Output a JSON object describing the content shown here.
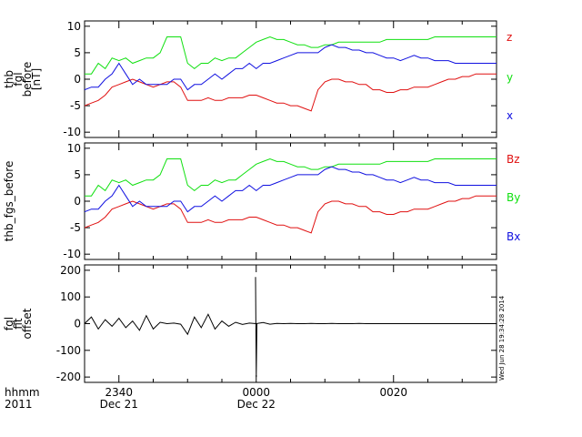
{
  "figure": {
    "x_time_labels": {
      "row1_label": "hhmm",
      "row2_label": "2011",
      "ticks": [
        {
          "t": -20,
          "row1": "2340",
          "row2": "Dec 21"
        },
        {
          "t": 0,
          "row1": "0000",
          "row2": "Dec 22"
        },
        {
          "t": 20,
          "row1": "0020",
          "row2": ""
        }
      ],
      "xlim_minutes": [
        -25,
        35
      ]
    },
    "timestamp": "Wed Jun 28 19:34:28 2014"
  },
  "chart_data": [
    {
      "type": "line",
      "ylabel_lines": [
        "thb",
        "fgl",
        "before",
        "[nT]"
      ],
      "ylim": [
        -11,
        11
      ],
      "yticks": [
        -10,
        -5,
        0,
        5,
        10
      ],
      "x_units": "minutes relative to Dec 22 0000",
      "series": [
        {
          "name": "z",
          "color": "#e01010",
          "x": [
            -25,
            -24,
            -23,
            -22,
            -21,
            -20,
            -19,
            -18,
            -17,
            -16,
            -15,
            -14,
            -13,
            -12,
            -11,
            -10,
            -9,
            -8,
            -7,
            -6,
            -5,
            -4,
            -3,
            -2,
            -1,
            0,
            1,
            2,
            3,
            4,
            5,
            6,
            7,
            8,
            9,
            10,
            11,
            12,
            13,
            14,
            15,
            16,
            17,
            18,
            19,
            20,
            21,
            22,
            23,
            24,
            25,
            26,
            27,
            28,
            29,
            30,
            31,
            32,
            33,
            34,
            35
          ],
          "y": [
            -5,
            -4.5,
            -4,
            -3,
            -1.5,
            -1,
            -0.5,
            0,
            -0.5,
            -1,
            -1.5,
            -1,
            -0.5,
            -0.5,
            -1.5,
            -4,
            -4,
            -4,
            -3.5,
            -4,
            -4,
            -3.5,
            -3.5,
            -3.5,
            -3,
            -3,
            -3.5,
            -4,
            -4.5,
            -4.5,
            -5,
            -5,
            -5.5,
            -6,
            -2,
            -0.5,
            0,
            0,
            -0.5,
            -0.5,
            -1,
            -1,
            -2,
            -2,
            -2.5,
            -2.5,
            -2,
            -2,
            -1.5,
            -1.5,
            -1.5,
            -1,
            -0.5,
            0,
            0,
            0.5,
            0.5,
            1,
            1,
            1,
            1
          ]
        },
        {
          "name": "y",
          "color": "#10e010",
          "x": [
            -25,
            -24,
            -23,
            -22,
            -21,
            -20,
            -19,
            -18,
            -17,
            -16,
            -15,
            -14,
            -13,
            -12,
            -11,
            -10,
            -9,
            -8,
            -7,
            -6,
            -5,
            -4,
            -3,
            -2,
            -1,
            0,
            1,
            2,
            3,
            4,
            5,
            6,
            7,
            8,
            9,
            10,
            11,
            12,
            13,
            14,
            15,
            16,
            17,
            18,
            19,
            20,
            21,
            22,
            23,
            24,
            25,
            26,
            27,
            28,
            29,
            30,
            31,
            32,
            33,
            34,
            35
          ],
          "y": [
            1,
            1,
            3,
            2,
            4,
            3.5,
            4,
            3,
            3.5,
            4,
            4,
            5,
            8,
            8,
            8,
            3,
            2,
            3,
            3,
            4,
            3.5,
            4,
            4,
            5,
            6,
            7,
            7.5,
            8,
            7.5,
            7.5,
            7,
            6.5,
            6.5,
            6,
            6,
            6.5,
            6.5,
            7,
            7,
            7,
            7,
            7,
            7,
            7,
            7.5,
            7.5,
            7.5,
            7.5,
            7.5,
            7.5,
            7.5,
            8,
            8,
            8,
            8,
            8,
            8,
            8,
            8,
            8,
            8
          ]
        },
        {
          "name": "x",
          "color": "#1010e0",
          "x": [
            -25,
            -24,
            -23,
            -22,
            -21,
            -20,
            -19,
            -18,
            -17,
            -16,
            -15,
            -14,
            -13,
            -12,
            -11,
            -10,
            -9,
            -8,
            -7,
            -6,
            -5,
            -4,
            -3,
            -2,
            -1,
            0,
            1,
            2,
            3,
            4,
            5,
            6,
            7,
            8,
            9,
            10,
            11,
            12,
            13,
            14,
            15,
            16,
            17,
            18,
            19,
            20,
            21,
            22,
            23,
            24,
            25,
            26,
            27,
            28,
            29,
            30,
            31,
            32,
            33,
            34,
            35
          ],
          "y": [
            -2,
            -1.5,
            -1.5,
            0,
            1,
            3,
            1,
            -1,
            0,
            -1,
            -1,
            -1,
            -1,
            0,
            0,
            -2,
            -1,
            -1,
            0,
            1,
            0,
            1,
            2,
            2,
            3,
            2,
            3,
            3,
            3.5,
            4,
            4.5,
            5,
            5,
            5,
            5,
            6,
            6.5,
            6,
            6,
            5.5,
            5.5,
            5,
            5,
            4.5,
            4,
            4,
            3.5,
            4,
            4.5,
            4,
            4,
            3.5,
            3.5,
            3.5,
            3,
            3,
            3,
            3,
            3,
            3,
            3
          ]
        }
      ]
    },
    {
      "type": "line",
      "ylabel_lines": [
        "thb_fgs_before"
      ],
      "ylim": [
        -11,
        11
      ],
      "yticks": [
        -10,
        -5,
        0,
        5,
        10
      ],
      "x_units": "minutes relative to Dec 22 0000",
      "series": [
        {
          "name": "Bz",
          "color": "#e01010",
          "x": [
            -25,
            -24,
            -23,
            -22,
            -21,
            -20,
            -19,
            -18,
            -17,
            -16,
            -15,
            -14,
            -13,
            -12,
            -11,
            -10,
            -9,
            -8,
            -7,
            -6,
            -5,
            -4,
            -3,
            -2,
            -1,
            0,
            1,
            2,
            3,
            4,
            5,
            6,
            7,
            8,
            9,
            10,
            11,
            12,
            13,
            14,
            15,
            16,
            17,
            18,
            19,
            20,
            21,
            22,
            23,
            24,
            25,
            26,
            27,
            28,
            29,
            30,
            31,
            32,
            33,
            34,
            35
          ],
          "y": [
            -5,
            -4.5,
            -4,
            -3,
            -1.5,
            -1,
            -0.5,
            0,
            -0.5,
            -1,
            -1.5,
            -1,
            -0.5,
            -0.5,
            -1.5,
            -4,
            -4,
            -4,
            -3.5,
            -4,
            -4,
            -3.5,
            -3.5,
            -3.5,
            -3,
            -3,
            -3.5,
            -4,
            -4.5,
            -4.5,
            -5,
            -5,
            -5.5,
            -6,
            -2,
            -0.5,
            0,
            0,
            -0.5,
            -0.5,
            -1,
            -1,
            -2,
            -2,
            -2.5,
            -2.5,
            -2,
            -2,
            -1.5,
            -1.5,
            -1.5,
            -1,
            -0.5,
            0,
            0,
            0.5,
            0.5,
            1,
            1,
            1,
            1
          ]
        },
        {
          "name": "By",
          "color": "#10e010",
          "x": [
            -25,
            -24,
            -23,
            -22,
            -21,
            -20,
            -19,
            -18,
            -17,
            -16,
            -15,
            -14,
            -13,
            -12,
            -11,
            -10,
            -9,
            -8,
            -7,
            -6,
            -5,
            -4,
            -3,
            -2,
            -1,
            0,
            1,
            2,
            3,
            4,
            5,
            6,
            7,
            8,
            9,
            10,
            11,
            12,
            13,
            14,
            15,
            16,
            17,
            18,
            19,
            20,
            21,
            22,
            23,
            24,
            25,
            26,
            27,
            28,
            29,
            30,
            31,
            32,
            33,
            34,
            35
          ],
          "y": [
            1,
            1,
            3,
            2,
            4,
            3.5,
            4,
            3,
            3.5,
            4,
            4,
            5,
            8,
            8,
            8,
            3,
            2,
            3,
            3,
            4,
            3.5,
            4,
            4,
            5,
            6,
            7,
            7.5,
            8,
            7.5,
            7.5,
            7,
            6.5,
            6.5,
            6,
            6,
            6.5,
            6.5,
            7,
            7,
            7,
            7,
            7,
            7,
            7,
            7.5,
            7.5,
            7.5,
            7.5,
            7.5,
            7.5,
            7.5,
            8,
            8,
            8,
            8,
            8,
            8,
            8,
            8,
            8,
            8
          ]
        },
        {
          "name": "Bx",
          "color": "#1010e0",
          "x": [
            -25,
            -24,
            -23,
            -22,
            -21,
            -20,
            -19,
            -18,
            -17,
            -16,
            -15,
            -14,
            -13,
            -12,
            -11,
            -10,
            -9,
            -8,
            -7,
            -6,
            -5,
            -4,
            -3,
            -2,
            -1,
            0,
            1,
            2,
            3,
            4,
            5,
            6,
            7,
            8,
            9,
            10,
            11,
            12,
            13,
            14,
            15,
            16,
            17,
            18,
            19,
            20,
            21,
            22,
            23,
            24,
            25,
            26,
            27,
            28,
            29,
            30,
            31,
            32,
            33,
            34,
            35
          ],
          "y": [
            -2,
            -1.5,
            -1.5,
            0,
            1,
            3,
            1,
            -1,
            0,
            -1,
            -1,
            -1,
            -1,
            0,
            0,
            -2,
            -1,
            -1,
            0,
            1,
            0,
            1,
            2,
            2,
            3,
            2,
            3,
            3,
            3.5,
            4,
            4.5,
            5,
            5,
            5,
            5,
            6,
            6.5,
            6,
            6,
            5.5,
            5.5,
            5,
            5,
            4.5,
            4,
            4,
            3.5,
            4,
            4.5,
            4,
            4,
            3.5,
            3.5,
            3.5,
            3,
            3,
            3,
            3,
            3,
            3,
            3
          ]
        }
      ]
    },
    {
      "type": "line",
      "ylabel_lines": [
        "fgl",
        "fit",
        "offset"
      ],
      "ylim": [
        -220,
        220
      ],
      "yticks": [
        -200,
        -100,
        0,
        100,
        200
      ],
      "x_units": "minutes relative to Dec 22 0000",
      "series": [
        {
          "name": "",
          "color": "#000000",
          "x": [
            -25,
            -24,
            -23,
            -22,
            -21,
            -20,
            -19,
            -18,
            -17,
            -16,
            -15,
            -14,
            -13,
            -12,
            -11,
            -10,
            -9,
            -8,
            -7,
            -6,
            -5,
            -4,
            -3,
            -2,
            -1,
            0,
            1,
            2,
            3,
            4,
            5,
            6,
            7,
            8,
            9,
            10,
            11,
            12,
            13,
            14,
            15,
            16,
            17,
            18,
            19,
            20,
            21,
            22,
            23,
            24,
            25,
            26,
            27,
            28,
            29,
            30,
            31,
            32,
            33,
            34,
            35
          ],
          "y": [
            0,
            25,
            -20,
            15,
            -10,
            20,
            -15,
            10,
            -25,
            30,
            -20,
            5,
            0,
            2,
            -2,
            -40,
            25,
            -15,
            35,
            -20,
            10,
            -10,
            5,
            -3,
            2,
            0,
            4,
            -2,
            1,
            0,
            1,
            0,
            0,
            1,
            0,
            0,
            1,
            0,
            0,
            0,
            1,
            0,
            0,
            0,
            0,
            0,
            0,
            0,
            0,
            0,
            0,
            0,
            0,
            0,
            0,
            0,
            0,
            0,
            0,
            0,
            0
          ]
        },
        {
          "name": "",
          "color": "#000000",
          "x": [
            -0.1,
            0,
            0.1
          ],
          "y": [
            175,
            -200,
            0
          ]
        }
      ]
    }
  ],
  "legend": {
    "panel1": [
      {
        "label": "z",
        "color": "#e01010"
      },
      {
        "label": "y",
        "color": "#10e010"
      },
      {
        "label": "x",
        "color": "#1010e0"
      }
    ],
    "panel2": [
      {
        "label": "Bz",
        "color": "#e01010"
      },
      {
        "label": "By",
        "color": "#10e010"
      },
      {
        "label": "Bx",
        "color": "#1010e0"
      }
    ]
  }
}
